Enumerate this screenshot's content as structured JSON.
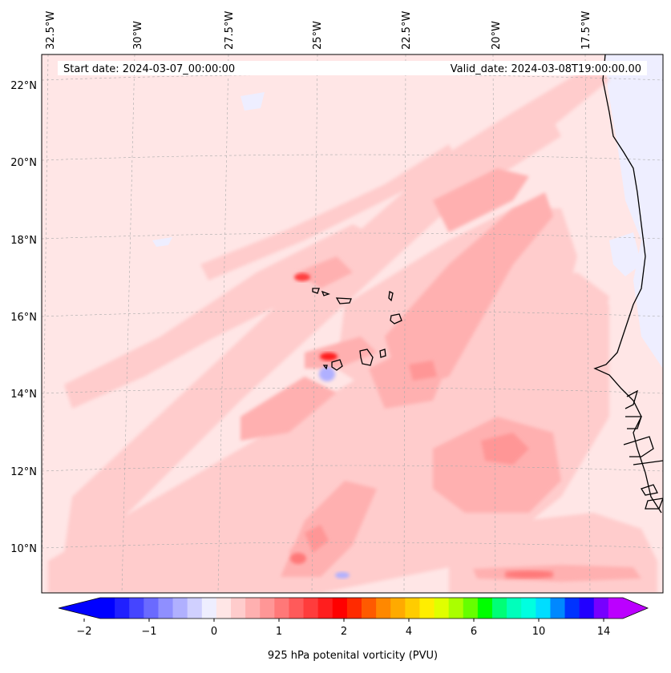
{
  "map": {
    "lon_labels": [
      "32.5°W",
      "30°W",
      "27.5°W",
      "25°W",
      "22.5°W",
      "20°W",
      "17.5°W"
    ],
    "lat_labels": [
      "22°N",
      "20°N",
      "18°N",
      "16°N",
      "14°N",
      "12°N",
      "10°N"
    ],
    "start_date": "Start date: 2024-03-07_00:00:00",
    "valid_date": "Valid_date: 2024-03-08T19:00:00.00"
  },
  "colorbar": {
    "ticks": [
      "−2",
      "−1",
      "0",
      "1",
      "2",
      "4",
      "6",
      "10",
      "14"
    ],
    "label": "925 hPa potenital vorticity (PVU)",
    "colors": [
      "#0000ff",
      "#2020ff",
      "#4545ff",
      "#6a6aff",
      "#8f8fff",
      "#b0b0ff",
      "#d0d0ff",
      "#eeeeff",
      "#ffe6e6",
      "#ffcccc",
      "#ffb0b0",
      "#ff9696",
      "#ff7878",
      "#ff5a5a",
      "#ff3c3c",
      "#ff1e1e",
      "#ff0000",
      "#ff2a00",
      "#ff5a00",
      "#ff8800",
      "#ffaa00",
      "#ffcc00",
      "#ffee00",
      "#e0ff00",
      "#aaff00",
      "#66ff00",
      "#00ff00",
      "#00ff77",
      "#00ffbb",
      "#00ffe0",
      "#00ddff",
      "#0088ff",
      "#0033ff",
      "#2200ff",
      "#7700ff",
      "#bb00ff"
    ]
  }
}
